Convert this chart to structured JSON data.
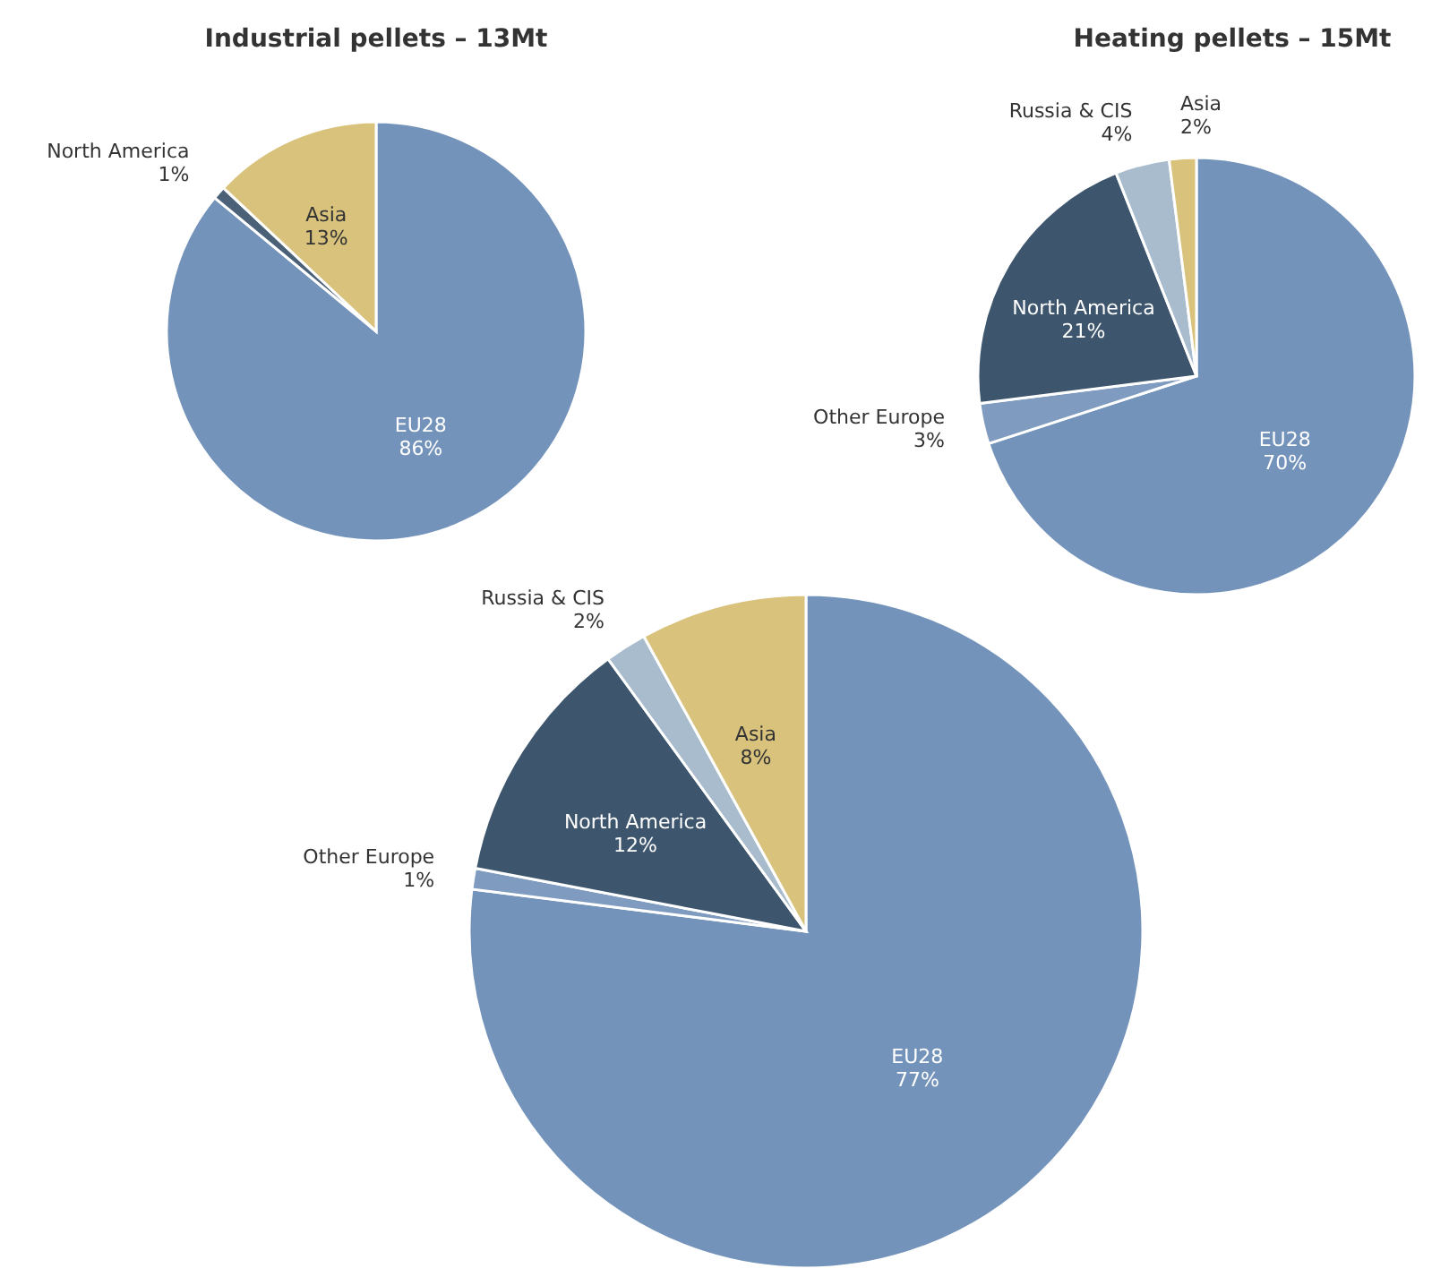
{
  "chart_data": [
    {
      "type": "pie",
      "title": "Industrial pellets – 13Mt",
      "categories": [
        "EU28",
        "North America",
        "Asia"
      ],
      "values": [
        86,
        1,
        13
      ],
      "colors": [
        "#7393ba",
        "#4a6178",
        "#d8c27c"
      ],
      "value_labels": [
        "86%",
        "1%",
        "13%"
      ]
    },
    {
      "type": "pie",
      "title": "Heating pellets – 15Mt",
      "categories": [
        "EU28",
        "Other Europe",
        "North America",
        "Russia & CIS",
        "Asia"
      ],
      "values": [
        70,
        3,
        21,
        4,
        2
      ],
      "colors": [
        "#7393ba",
        "#7f9cc0",
        "#3e566d",
        "#a9bccd",
        "#d8c27c"
      ],
      "value_labels": [
        "70%",
        "3%",
        "21%",
        "4%",
        "2%"
      ]
    },
    {
      "type": "pie",
      "categories": [
        "EU28",
        "Other Europe",
        "North America",
        "Russia & CIS",
        "Asia"
      ],
      "values": [
        77,
        1,
        12,
        2,
        8
      ],
      "colors": [
        "#7393ba",
        "#7f9cc0",
        "#3e566d",
        "#a9bccd",
        "#d8c27c"
      ],
      "value_labels": [
        "77%",
        "1%",
        "12%",
        "2%",
        "8%"
      ]
    }
  ]
}
